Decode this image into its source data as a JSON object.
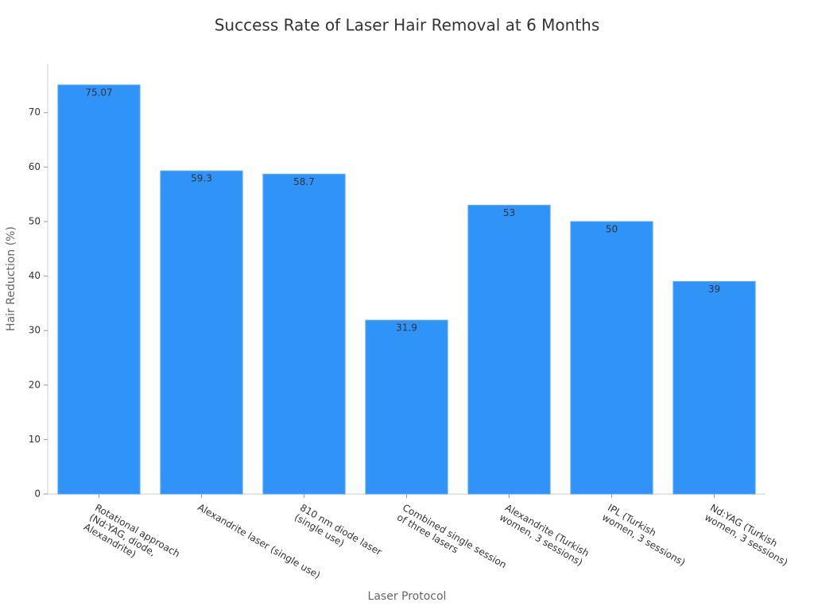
{
  "chart_data": {
    "type": "bar",
    "title": "Success Rate of Laser Hair Removal at 6 Months",
    "x_label": "Laser Protocol",
    "y_label": "Hair Reduction (%)",
    "categories": [
      "Rotational approach\n(Nd:YAG, diode,\nAlexandrite)",
      "Alexandrite laser (single use)",
      "810 nm diode laser\n(single use)",
      "Combined single session\nof three lasers",
      "Alexandrite (Turkish\nwomen, 3 sessions)",
      "IPL (Turkish\nwomen, 3 sessions)",
      "Nd:YAG (Turkish\nwomen, 3 sessions)"
    ],
    "values": [
      75.07,
      59.3,
      58.7,
      31.9,
      53,
      50,
      39
    ],
    "color": "#3093f8",
    "ylim": [
      0,
      79
    ],
    "yticks": [
      0,
      10,
      20,
      30,
      40,
      50,
      60,
      70
    ],
    "grid": false
  }
}
